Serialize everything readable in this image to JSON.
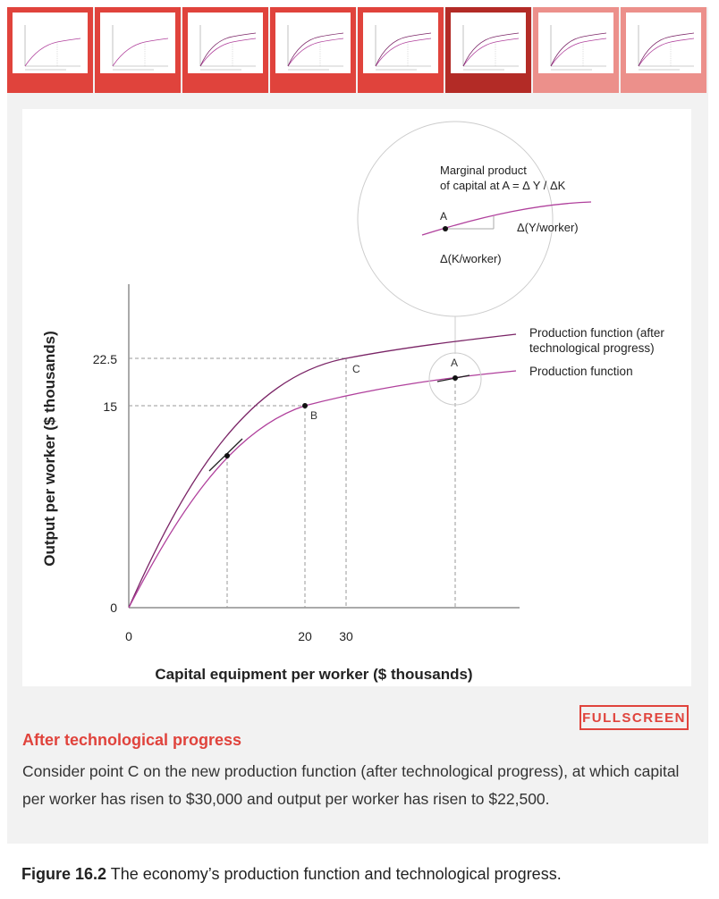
{
  "thumbnails": [
    {
      "state": "normal"
    },
    {
      "state": "normal"
    },
    {
      "state": "normal"
    },
    {
      "state": "normal"
    },
    {
      "state": "normal"
    },
    {
      "state": "active"
    },
    {
      "state": "dim"
    },
    {
      "state": "dim"
    }
  ],
  "chart_data": {
    "type": "line",
    "xlabel": "Capital equipment per worker ($ thousands)",
    "ylabel": "Output per worker ($ thousands)",
    "x_ticks": [
      "0",
      "20",
      "30"
    ],
    "y_ticks": [
      "0",
      "15",
      "22.5"
    ],
    "series": [
      {
        "name": "Production function (after technological progress)",
        "color": "#7a2466"
      },
      {
        "name": "Production function",
        "color": "#b0409c"
      }
    ],
    "points": [
      {
        "label": "B",
        "x": 20,
        "y": 15
      },
      {
        "label": "C",
        "x": 30,
        "y": 22.5
      },
      {
        "label": "A"
      }
    ],
    "inset": {
      "title_line1": "Marginal product",
      "title_line2": "of capital at A = Δ Y / ΔK",
      "point_label": "A",
      "dy_label": "Δ(Y/worker)",
      "dx_label": "Δ(K/worker)"
    }
  },
  "fullscreen_label": "FULLSCREEN",
  "step": {
    "title": "After technological progress",
    "text": "Consider point C on the new production function (after technological progress), at which capital per worker has risen to $30,000 and output per worker has risen to $22,500."
  },
  "caption": {
    "label": "Figure 16.2",
    "text": " The economy’s production function and technological progress."
  }
}
